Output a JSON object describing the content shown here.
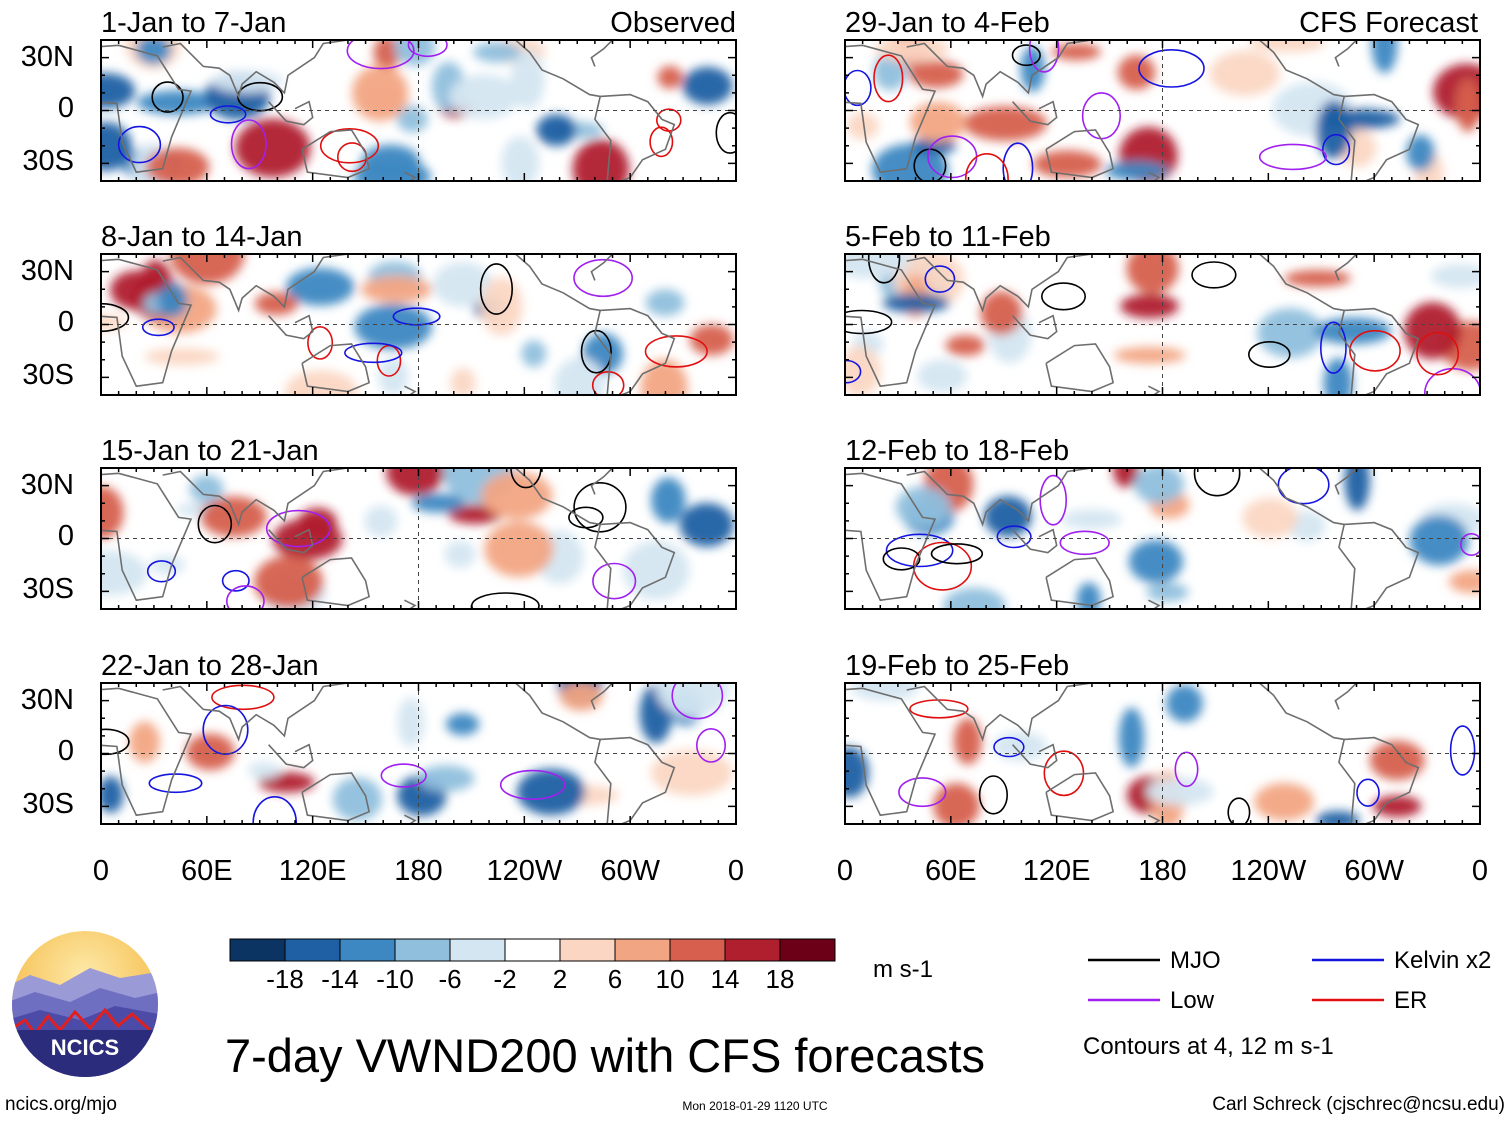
{
  "chart_data": {
    "type": "heatmap",
    "title": "7-day VWND200 with CFS forecasts",
    "variable": "VWND200",
    "units": "m s-1",
    "columns": [
      {
        "header": "Observed",
        "periods": [
          "1-Jan to 7-Jan",
          "8-Jan to 14-Jan",
          "15-Jan to 21-Jan",
          "22-Jan to 28-Jan"
        ]
      },
      {
        "header": "CFS Forecast",
        "periods": [
          "29-Jan to 4-Feb",
          "5-Feb to 11-Feb",
          "12-Feb to 18-Feb",
          "19-Feb to 25-Feb"
        ]
      }
    ],
    "y_ticks": [
      "30N",
      "0",
      "30S"
    ],
    "x_ticks": [
      "0",
      "60E",
      "120E",
      "180",
      "120W",
      "60W",
      "0"
    ],
    "colorbar": {
      "tick_labels": [
        "-18",
        "-14",
        "-10",
        "-6",
        "-2",
        "2",
        "6",
        "10",
        "14",
        "18"
      ],
      "colors": [
        "#0c3463",
        "#1f5fa3",
        "#3d88c2",
        "#8fbfdd",
        "#d4e6f1",
        "#ffffff",
        "#fbd7c3",
        "#f2a583",
        "#d6604d",
        "#b01f2e",
        "#6b0016"
      ]
    },
    "legend": [
      {
        "label": "MJO",
        "color": "#000000"
      },
      {
        "label": "Kelvin x2",
        "color": "#1515e0"
      },
      {
        "label": "Low",
        "color": "#a020f0"
      },
      {
        "label": "ER",
        "color": "#e01010"
      }
    ],
    "contour_note": "Contours at 4, 12 m s-1"
  },
  "footer": {
    "logo_text": "NCICS",
    "left": "ncics.org/mjo",
    "center": "Mon 2018-01-29 1120 UTC",
    "right": "Carl Schreck (cjschrec@ncsu.edu)"
  }
}
